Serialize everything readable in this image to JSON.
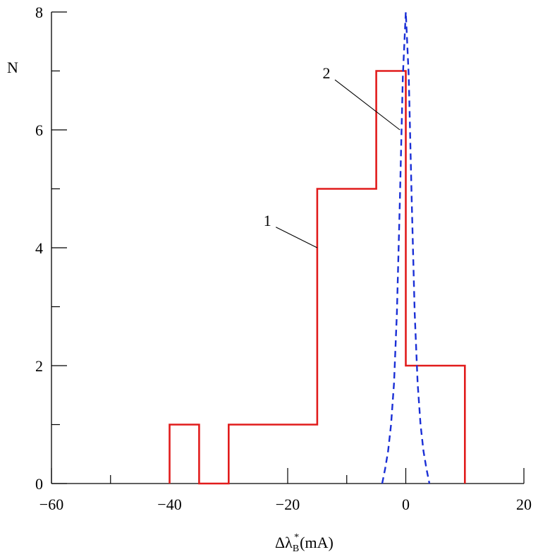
{
  "chart_data": {
    "type": "line",
    "title": "",
    "xlabel": {
      "delta": "Δλ",
      "subscript": "B",
      "superscript": "*",
      "unit": "(mA)"
    },
    "ylabel": "N",
    "xlim": [
      -60,
      20
    ],
    "ylim": [
      0,
      8
    ],
    "x_ticks": [
      -60,
      -40,
      -20,
      0,
      20
    ],
    "x_minor_ticks": [
      -50,
      -30,
      -10,
      10
    ],
    "y_ticks": [
      0,
      2,
      4,
      6,
      8
    ],
    "y_minor_ticks": [
      1,
      3,
      5,
      7
    ],
    "grid": false,
    "series": [
      {
        "style": "step histogram",
        "color": "#e11c1c",
        "x": [
          -40,
          -40,
          -35,
          -35,
          -30,
          -30,
          -15,
          -15,
          -5,
          -5,
          0,
          0,
          10,
          10
        ],
        "y": [
          0,
          1,
          1,
          0,
          0,
          1,
          1,
          5,
          5,
          7,
          7,
          2,
          2,
          0
        ]
      },
      {
        "style": "dashed",
        "color": "#1a2fd6",
        "x": [
          -4,
          -3.5,
          -3,
          -2.5,
          -2,
          -1.5,
          -1,
          -0.5,
          0,
          0.5,
          1,
          1.5,
          2,
          2.5,
          3,
          3.5,
          4
        ],
        "y": [
          0.0,
          0.25,
          0.55,
          1.0,
          1.7,
          2.9,
          4.8,
          6.9,
          8.0,
          6.9,
          4.8,
          2.9,
          1.7,
          1.0,
          0.55,
          0.25,
          0.0
        ]
      }
    ],
    "annotations": [
      {
        "text": "1",
        "x": -22,
        "y": 4.35,
        "to_x": -15,
        "to_y": 4
      },
      {
        "text": "2",
        "x": -12,
        "y": 6.85,
        "to_x": -1,
        "to_y": 6
      }
    ]
  }
}
